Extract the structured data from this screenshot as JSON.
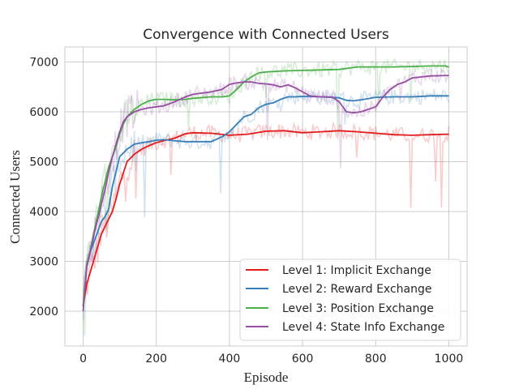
{
  "chart_data": {
    "type": "line",
    "title": "Convergence with Connected Users",
    "xlabel": "Episode",
    "ylabel": "Connected Users",
    "xlim": [
      -50,
      1050
    ],
    "ylim": [
      1300,
      7300
    ],
    "x_ticks": [
      0,
      200,
      400,
      600,
      800,
      1000
    ],
    "y_ticks": [
      2000,
      3000,
      4000,
      5000,
      6000,
      7000
    ],
    "grid": true,
    "legend_position": "lower-right",
    "raw_overlay": "faint noisy raw episode curves drawn behind each smoothed series",
    "series": [
      {
        "name": "Level 1: Implicit Exchange",
        "color": "#e41a1c",
        "x": [
          0,
          10,
          20,
          30,
          40,
          50,
          60,
          70,
          80,
          90,
          100,
          120,
          140,
          160,
          180,
          200,
          220,
          250,
          280,
          300,
          350,
          400,
          450,
          500,
          550,
          600,
          650,
          700,
          750,
          800,
          850,
          900,
          950,
          1000
        ],
        "y": [
          2100,
          2550,
          2800,
          3050,
          3300,
          3550,
          3700,
          3850,
          4000,
          4250,
          4550,
          5000,
          5150,
          5250,
          5320,
          5380,
          5420,
          5470,
          5560,
          5580,
          5570,
          5530,
          5550,
          5610,
          5620,
          5580,
          5600,
          5620,
          5600,
          5570,
          5540,
          5530,
          5540,
          5550
        ]
      },
      {
        "name": "Level 2: Reward Exchange",
        "color": "#377eb8",
        "x": [
          0,
          10,
          20,
          30,
          40,
          50,
          60,
          70,
          80,
          90,
          100,
          120,
          140,
          160,
          180,
          200,
          220,
          250,
          280,
          300,
          350,
          380,
          400,
          420,
          440,
          460,
          480,
          500,
          520,
          540,
          560,
          580,
          600,
          650,
          700,
          720,
          740,
          760,
          800,
          850,
          900,
          950,
          1000
        ],
        "y": [
          2100,
          2900,
          3200,
          3400,
          3600,
          3800,
          3900,
          4050,
          4500,
          4800,
          5100,
          5250,
          5350,
          5380,
          5400,
          5430,
          5440,
          5420,
          5400,
          5400,
          5400,
          5500,
          5600,
          5750,
          5900,
          5950,
          6080,
          6150,
          6180,
          6250,
          6300,
          6300,
          6310,
          6300,
          6280,
          6230,
          6220,
          6240,
          6290,
          6300,
          6300,
          6320,
          6320
        ]
      },
      {
        "name": "Level 3: Position Exchange",
        "color": "#4daf4a",
        "x": [
          0,
          10,
          20,
          30,
          40,
          50,
          60,
          70,
          80,
          90,
          100,
          110,
          120,
          140,
          160,
          180,
          200,
          220,
          250,
          280,
          300,
          350,
          380,
          400,
          420,
          440,
          460,
          480,
          500,
          550,
          600,
          650,
          700,
          750,
          800,
          850,
          900,
          950,
          990,
          1000
        ],
        "y": [
          2100,
          2950,
          3250,
          3600,
          3950,
          4300,
          4600,
          4900,
          5100,
          5300,
          5550,
          5750,
          5900,
          6050,
          6150,
          6220,
          6250,
          6250,
          6240,
          6250,
          6270,
          6300,
          6300,
          6320,
          6450,
          6600,
          6700,
          6780,
          6800,
          6820,
          6830,
          6840,
          6850,
          6900,
          6900,
          6900,
          6910,
          6920,
          6920,
          6900
        ]
      },
      {
        "name": "Level 4: State Info Exchange",
        "color": "#984ea3",
        "x": [
          0,
          10,
          20,
          30,
          40,
          50,
          60,
          70,
          80,
          90,
          100,
          110,
          120,
          140,
          160,
          180,
          200,
          220,
          250,
          280,
          300,
          350,
          380,
          400,
          420,
          440,
          460,
          480,
          500,
          520,
          540,
          560,
          580,
          600,
          620,
          650,
          680,
          700,
          720,
          740,
          760,
          780,
          800,
          820,
          840,
          860,
          880,
          900,
          950,
          1000
        ],
        "y": [
          2000,
          2900,
          3200,
          3550,
          3850,
          4150,
          4450,
          4800,
          5100,
          5350,
          5600,
          5800,
          5900,
          6000,
          6050,
          6080,
          6100,
          6120,
          6200,
          6300,
          6350,
          6400,
          6450,
          6550,
          6580,
          6600,
          6600,
          6570,
          6560,
          6540,
          6500,
          6540,
          6480,
          6400,
          6320,
          6300,
          6300,
          6200,
          6000,
          5980,
          6000,
          6050,
          6100,
          6300,
          6450,
          6550,
          6600,
          6680,
          6720,
          6730
        ]
      }
    ]
  }
}
